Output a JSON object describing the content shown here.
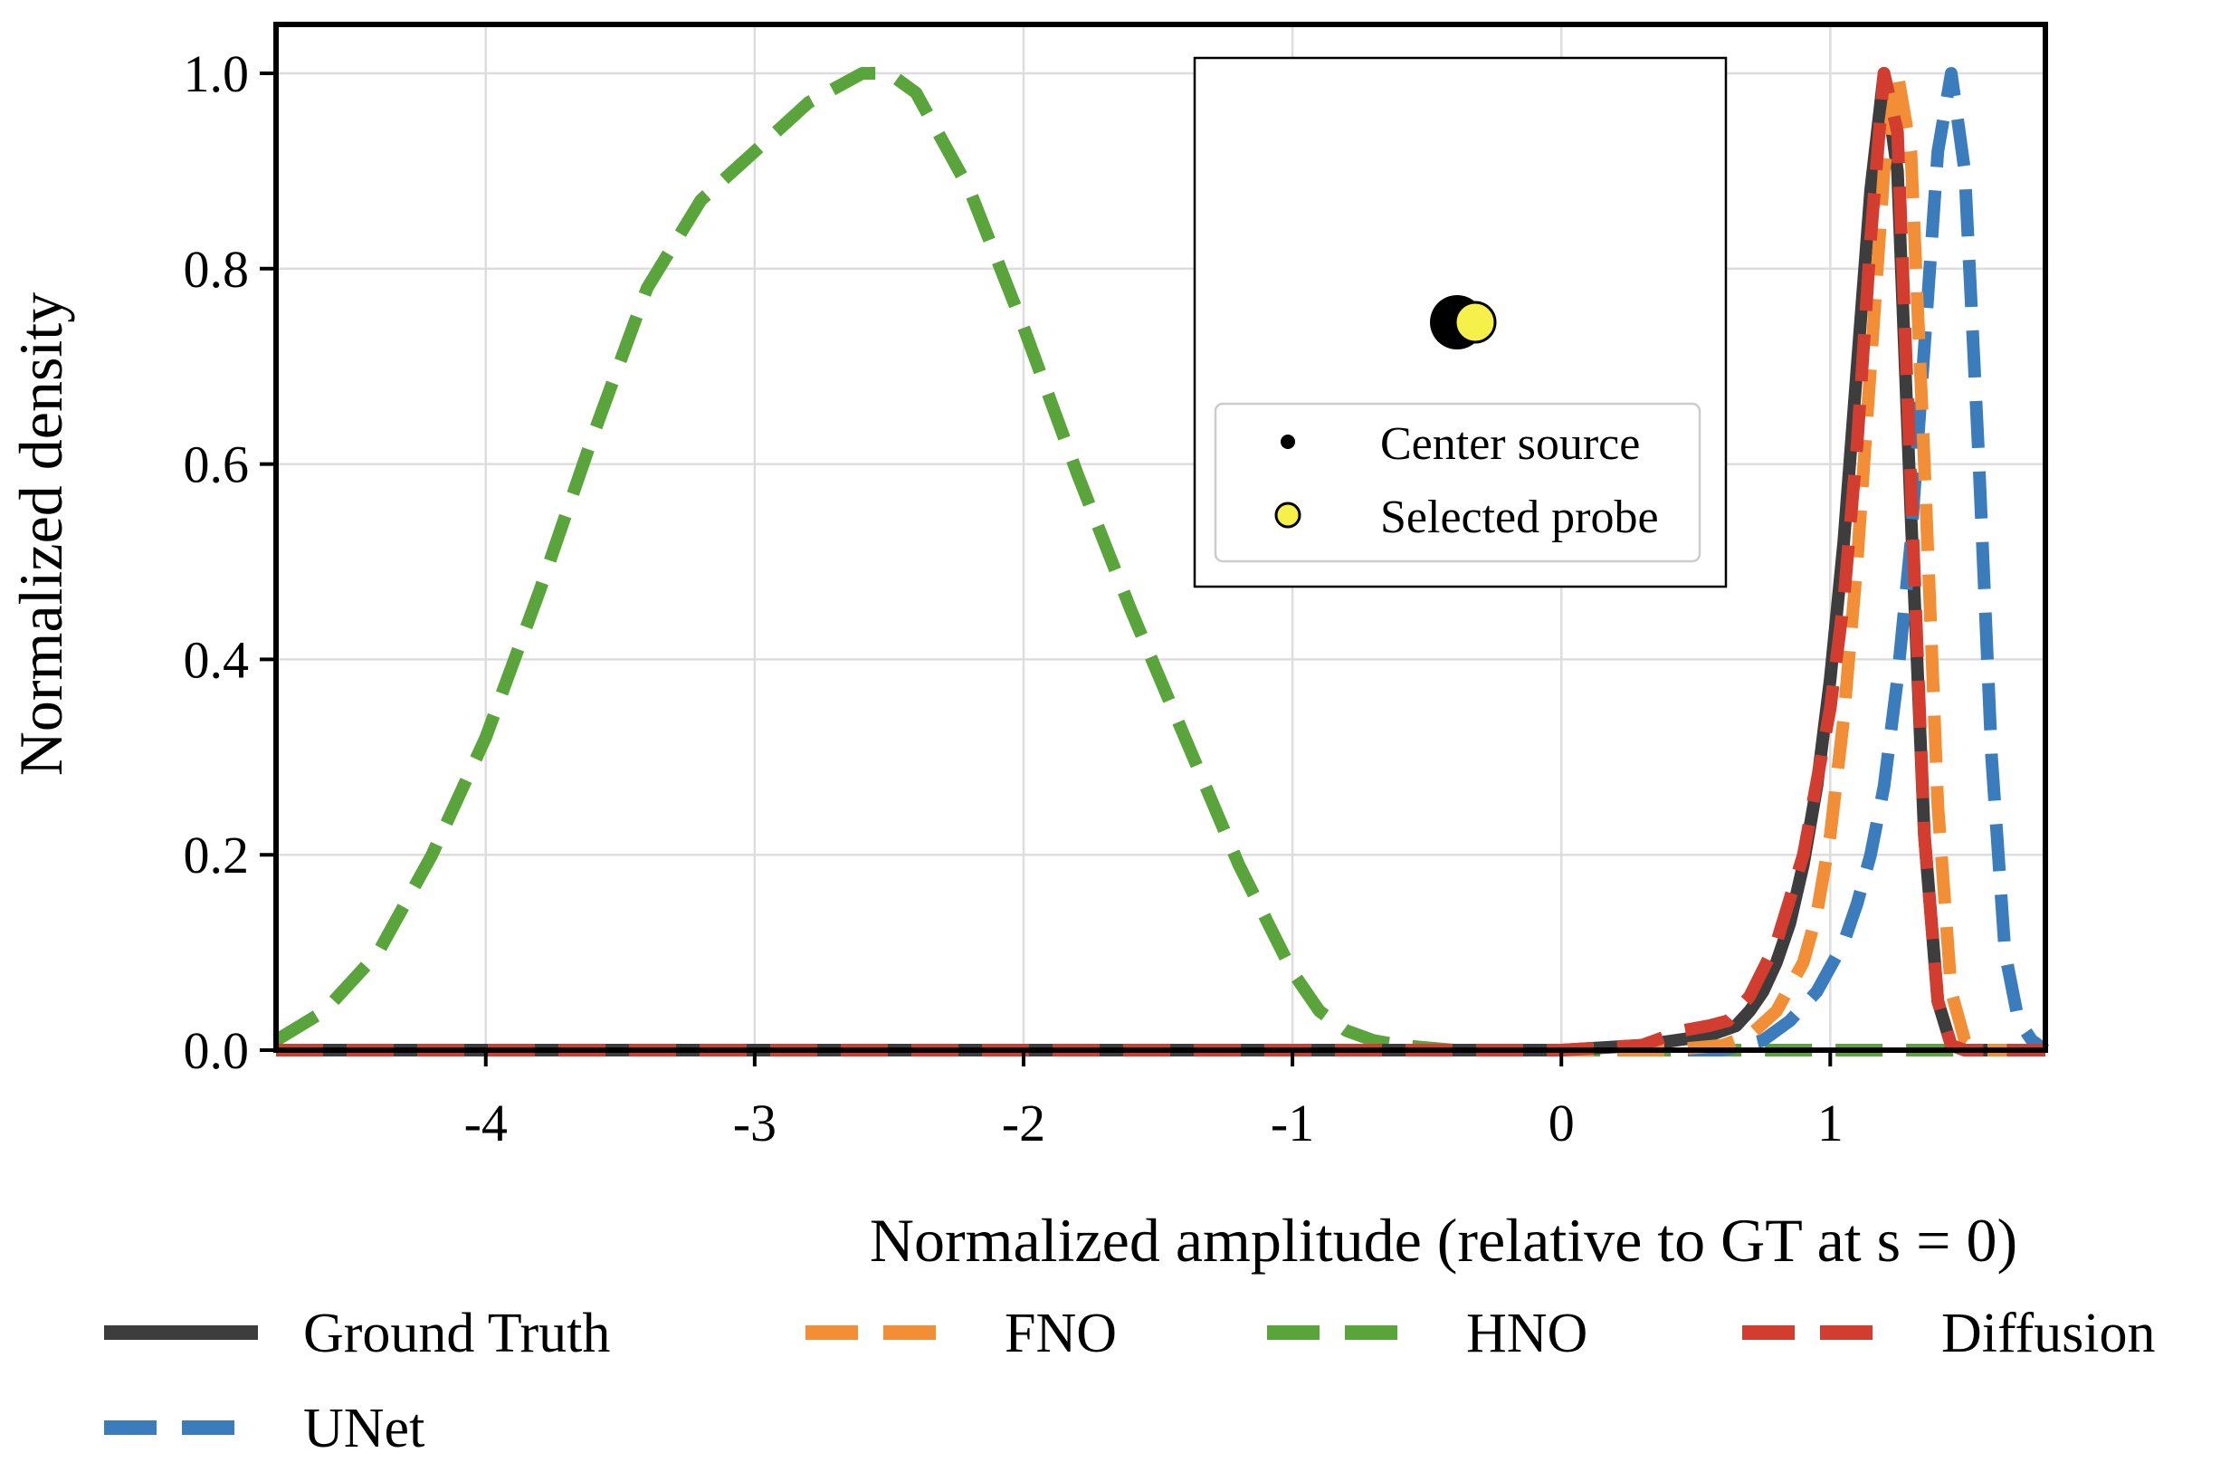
{
  "chart_data": {
    "type": "line",
    "title": "",
    "xlabel": "Normalized amplitude (relative to GT at s = 0)",
    "ylabel": "Normalized density",
    "xlim": [
      -4.78,
      1.8
    ],
    "ylim": [
      0,
      1.05
    ],
    "grid": true,
    "x_ticks": [
      -4,
      -3,
      -2,
      -1,
      0,
      1
    ],
    "x_tick_labels": [
      "-4",
      "-3",
      "-2",
      "-1",
      "0",
      "1"
    ],
    "y_ticks": [
      0.0,
      0.2,
      0.4,
      0.6,
      0.8,
      1.0
    ],
    "y_tick_labels": [
      "0.0",
      "0.2",
      "0.4",
      "0.6",
      "0.8",
      "1.0"
    ],
    "legend_placement": "bottom, outside",
    "series": [
      {
        "name": "Ground Truth",
        "color": "#3d3d3d",
        "style": "solid",
        "x": [
          -4.78,
          0.0,
          0.3,
          0.55,
          0.65,
          0.7,
          0.75,
          0.8,
          0.85,
          0.9,
          0.95,
          1.0,
          1.05,
          1.1,
          1.15,
          1.2,
          1.25,
          1.3,
          1.35,
          1.4,
          1.45,
          1.5,
          1.8
        ],
        "y": [
          0.0,
          0.0,
          0.005,
          0.015,
          0.025,
          0.04,
          0.06,
          0.09,
          0.13,
          0.19,
          0.27,
          0.38,
          0.52,
          0.7,
          0.88,
          1.0,
          0.9,
          0.55,
          0.22,
          0.05,
          0.005,
          0.0,
          0.0
        ]
      },
      {
        "name": "FNO",
        "color": "#f28e36",
        "style": "dashed",
        "x": [
          -4.78,
          0.4,
          0.6,
          0.7,
          0.8,
          0.9,
          0.95,
          1.0,
          1.05,
          1.1,
          1.15,
          1.2,
          1.25,
          1.3,
          1.35,
          1.4,
          1.45,
          1.5,
          1.55,
          1.8
        ],
        "y": [
          0.0,
          0.0,
          0.005,
          0.015,
          0.04,
          0.09,
          0.14,
          0.22,
          0.34,
          0.5,
          0.7,
          0.9,
          1.0,
          0.92,
          0.6,
          0.25,
          0.06,
          0.01,
          0.0,
          0.0
        ]
      },
      {
        "name": "HNO",
        "color": "#59a43b",
        "style": "dashed",
        "x": [
          -4.78,
          -4.6,
          -4.4,
          -4.2,
          -4.0,
          -3.8,
          -3.6,
          -3.4,
          -3.2,
          -3.0,
          -2.8,
          -2.6,
          -2.5,
          -2.4,
          -2.2,
          -2.0,
          -1.8,
          -1.6,
          -1.4,
          -1.2,
          -1.0,
          -0.9,
          -0.8,
          -0.7,
          -0.6,
          -0.4,
          0.0,
          1.8
        ],
        "y": [
          0.01,
          0.04,
          0.1,
          0.2,
          0.32,
          0.47,
          0.63,
          0.78,
          0.87,
          0.92,
          0.97,
          1.0,
          1.0,
          0.98,
          0.88,
          0.74,
          0.59,
          0.45,
          0.32,
          0.19,
          0.08,
          0.04,
          0.02,
          0.01,
          0.005,
          0.0,
          0.0,
          0.0
        ]
      },
      {
        "name": "Diffusion",
        "color": "#d23d30",
        "style": "dashed",
        "x": [
          -4.78,
          0.0,
          0.3,
          0.45,
          0.55,
          0.62,
          0.7,
          0.8,
          0.9,
          1.0,
          1.05,
          1.1,
          1.15,
          1.2,
          1.25,
          1.3,
          1.35,
          1.4,
          1.45,
          1.5,
          1.8
        ],
        "y": [
          0.0,
          0.0,
          0.005,
          0.02,
          0.025,
          0.03,
          0.055,
          0.11,
          0.2,
          0.35,
          0.46,
          0.62,
          0.83,
          1.0,
          0.94,
          0.58,
          0.22,
          0.05,
          0.005,
          0.0,
          0.0
        ]
      },
      {
        "name": "UNet",
        "color": "#3b7cbd",
        "style": "dashed",
        "x": [
          -4.78,
          0.6,
          0.75,
          0.85,
          0.95,
          1.05,
          1.1,
          1.15,
          1.2,
          1.25,
          1.3,
          1.35,
          1.4,
          1.45,
          1.5,
          1.55,
          1.6,
          1.65,
          1.7,
          1.75,
          1.8
        ],
        "y": [
          0.0,
          0.0,
          0.01,
          0.03,
          0.06,
          0.11,
          0.15,
          0.2,
          0.27,
          0.38,
          0.52,
          0.72,
          0.92,
          1.0,
          0.9,
          0.62,
          0.3,
          0.1,
          0.03,
          0.01,
          0.0
        ]
      }
    ],
    "inset": {
      "legend": [
        {
          "label": "Center source",
          "color": "#000000"
        },
        {
          "label": "Selected probe",
          "color": "#f5f04a"
        }
      ]
    }
  }
}
